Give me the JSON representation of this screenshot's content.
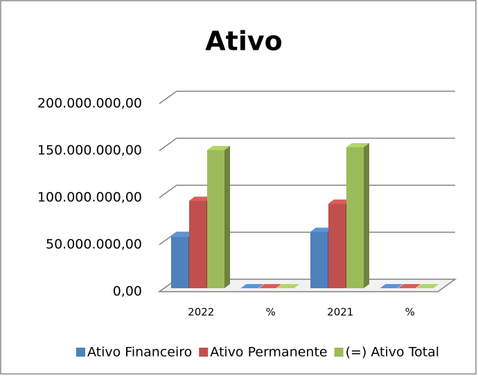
{
  "chart_data": {
    "type": "bar3d",
    "title": "Ativo",
    "categories": [
      "2022",
      "%",
      "2021",
      "%"
    ],
    "series": [
      {
        "name": "Ativo Financeiro",
        "color": "#4f81bd",
        "values": [
          55000000,
          0,
          60000000,
          0
        ]
      },
      {
        "name": "Ativo Permanente",
        "color": "#c0504d",
        "values": [
          93000000,
          0,
          90000000,
          0
        ]
      },
      {
        "name": "(=) Ativo Total",
        "color": "#9bbb59",
        "values": [
          147000000,
          0,
          150000000,
          0
        ]
      }
    ],
    "ylim": [
      0,
      200000000
    ],
    "yticks": [
      {
        "value": 0,
        "label": "0,00"
      },
      {
        "value": 50000000,
        "label": "50.000.000,00"
      },
      {
        "value": 100000000,
        "label": "100.000.000,00"
      },
      {
        "value": 150000000,
        "label": "150.000.000,00"
      },
      {
        "value": 200000000,
        "label": "200.000.000,00"
      }
    ],
    "grid": true,
    "legend": "bottom"
  }
}
